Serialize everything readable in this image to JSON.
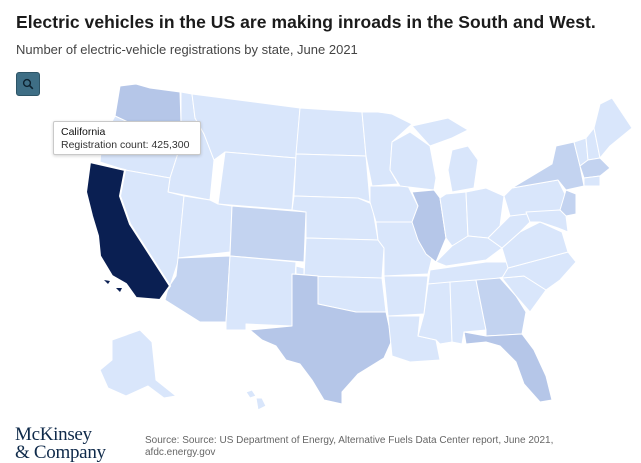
{
  "header": {
    "title": "Electric vehicles in the US are making inroads in the South and West.",
    "subtitle": "Number of electric-vehicle registrations by state, June 2021"
  },
  "controls": {
    "zoom_icon": "magnifier-icon"
  },
  "tooltip": {
    "state": "California",
    "value_text": "Registration count: 425,300"
  },
  "footer": {
    "logo_line1": "McKinsey",
    "logo_line2": "& Company",
    "source_line1": "Source: Source: US Department of Energy, Alternative Fuels Data Center report, June 2021,",
    "source_line2": "afdc.energy.gov"
  },
  "colors": {
    "level_1": "#d9e6fb",
    "level_2": "#c3d3f0",
    "level_3": "#b5c6e8",
    "highlight": "#0a1f52",
    "border": "#ffffff",
    "button": "#3e6e85"
  },
  "chart_data": {
    "type": "choropleth",
    "highlighted_state": "California",
    "highlighted_value": 425300
  }
}
